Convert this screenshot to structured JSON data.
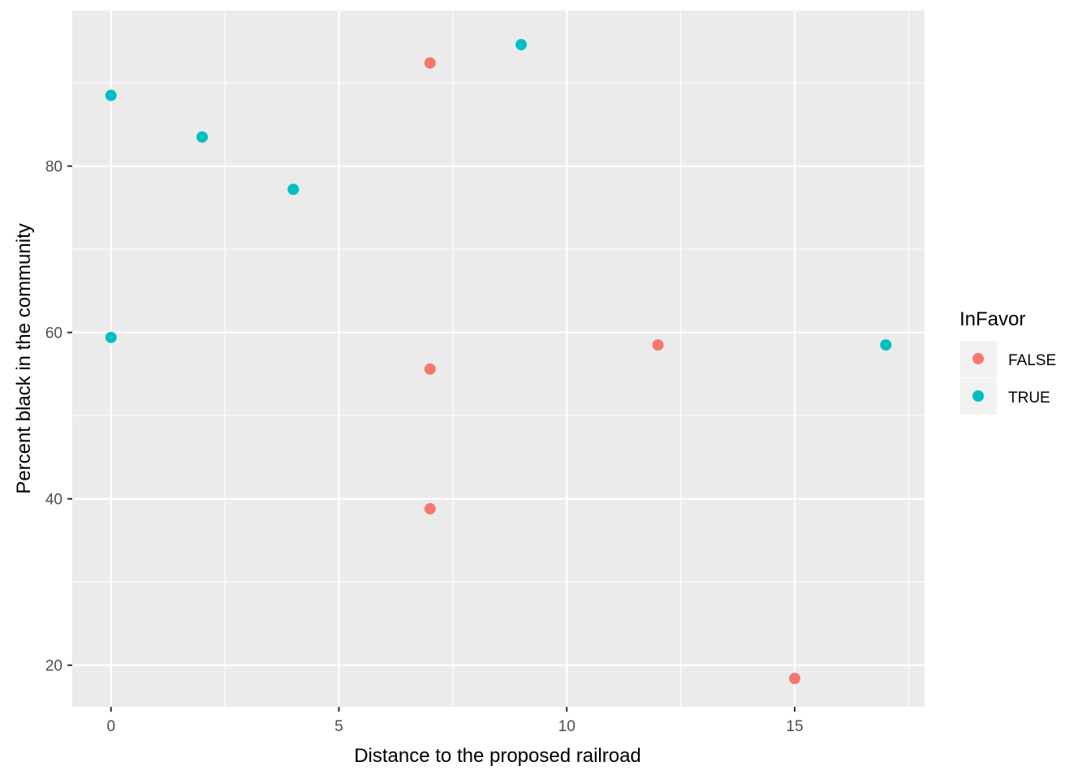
{
  "chart_data": {
    "type": "scatter",
    "title": "",
    "xlabel": "Distance to the proposed railroad",
    "ylabel": "Percent black in the community",
    "xlim": [
      -0.85,
      17.85
    ],
    "ylim": [
      15,
      98.7
    ],
    "x_ticks": [
      0,
      5,
      10,
      15
    ],
    "y_ticks": [
      20,
      40,
      60,
      80
    ],
    "grid": true,
    "background": "#EBEBEB",
    "legend": {
      "title": "InFavor",
      "position": "right"
    },
    "series": [
      {
        "name": "FALSE",
        "color": "#F8766D",
        "points": [
          {
            "x": 7,
            "y": 92.4
          },
          {
            "x": 7,
            "y": 55.6
          },
          {
            "x": 7,
            "y": 38.8
          },
          {
            "x": 12,
            "y": 58.5
          },
          {
            "x": 15,
            "y": 18.4
          }
        ]
      },
      {
        "name": "TRUE",
        "color": "#00BFC4",
        "points": [
          {
            "x": 0,
            "y": 88.5
          },
          {
            "x": 2,
            "y": 83.5
          },
          {
            "x": 4,
            "y": 77.2
          },
          {
            "x": 0,
            "y": 59.4
          },
          {
            "x": 9,
            "y": 94.6
          },
          {
            "x": 17,
            "y": 58.5
          }
        ]
      }
    ]
  }
}
